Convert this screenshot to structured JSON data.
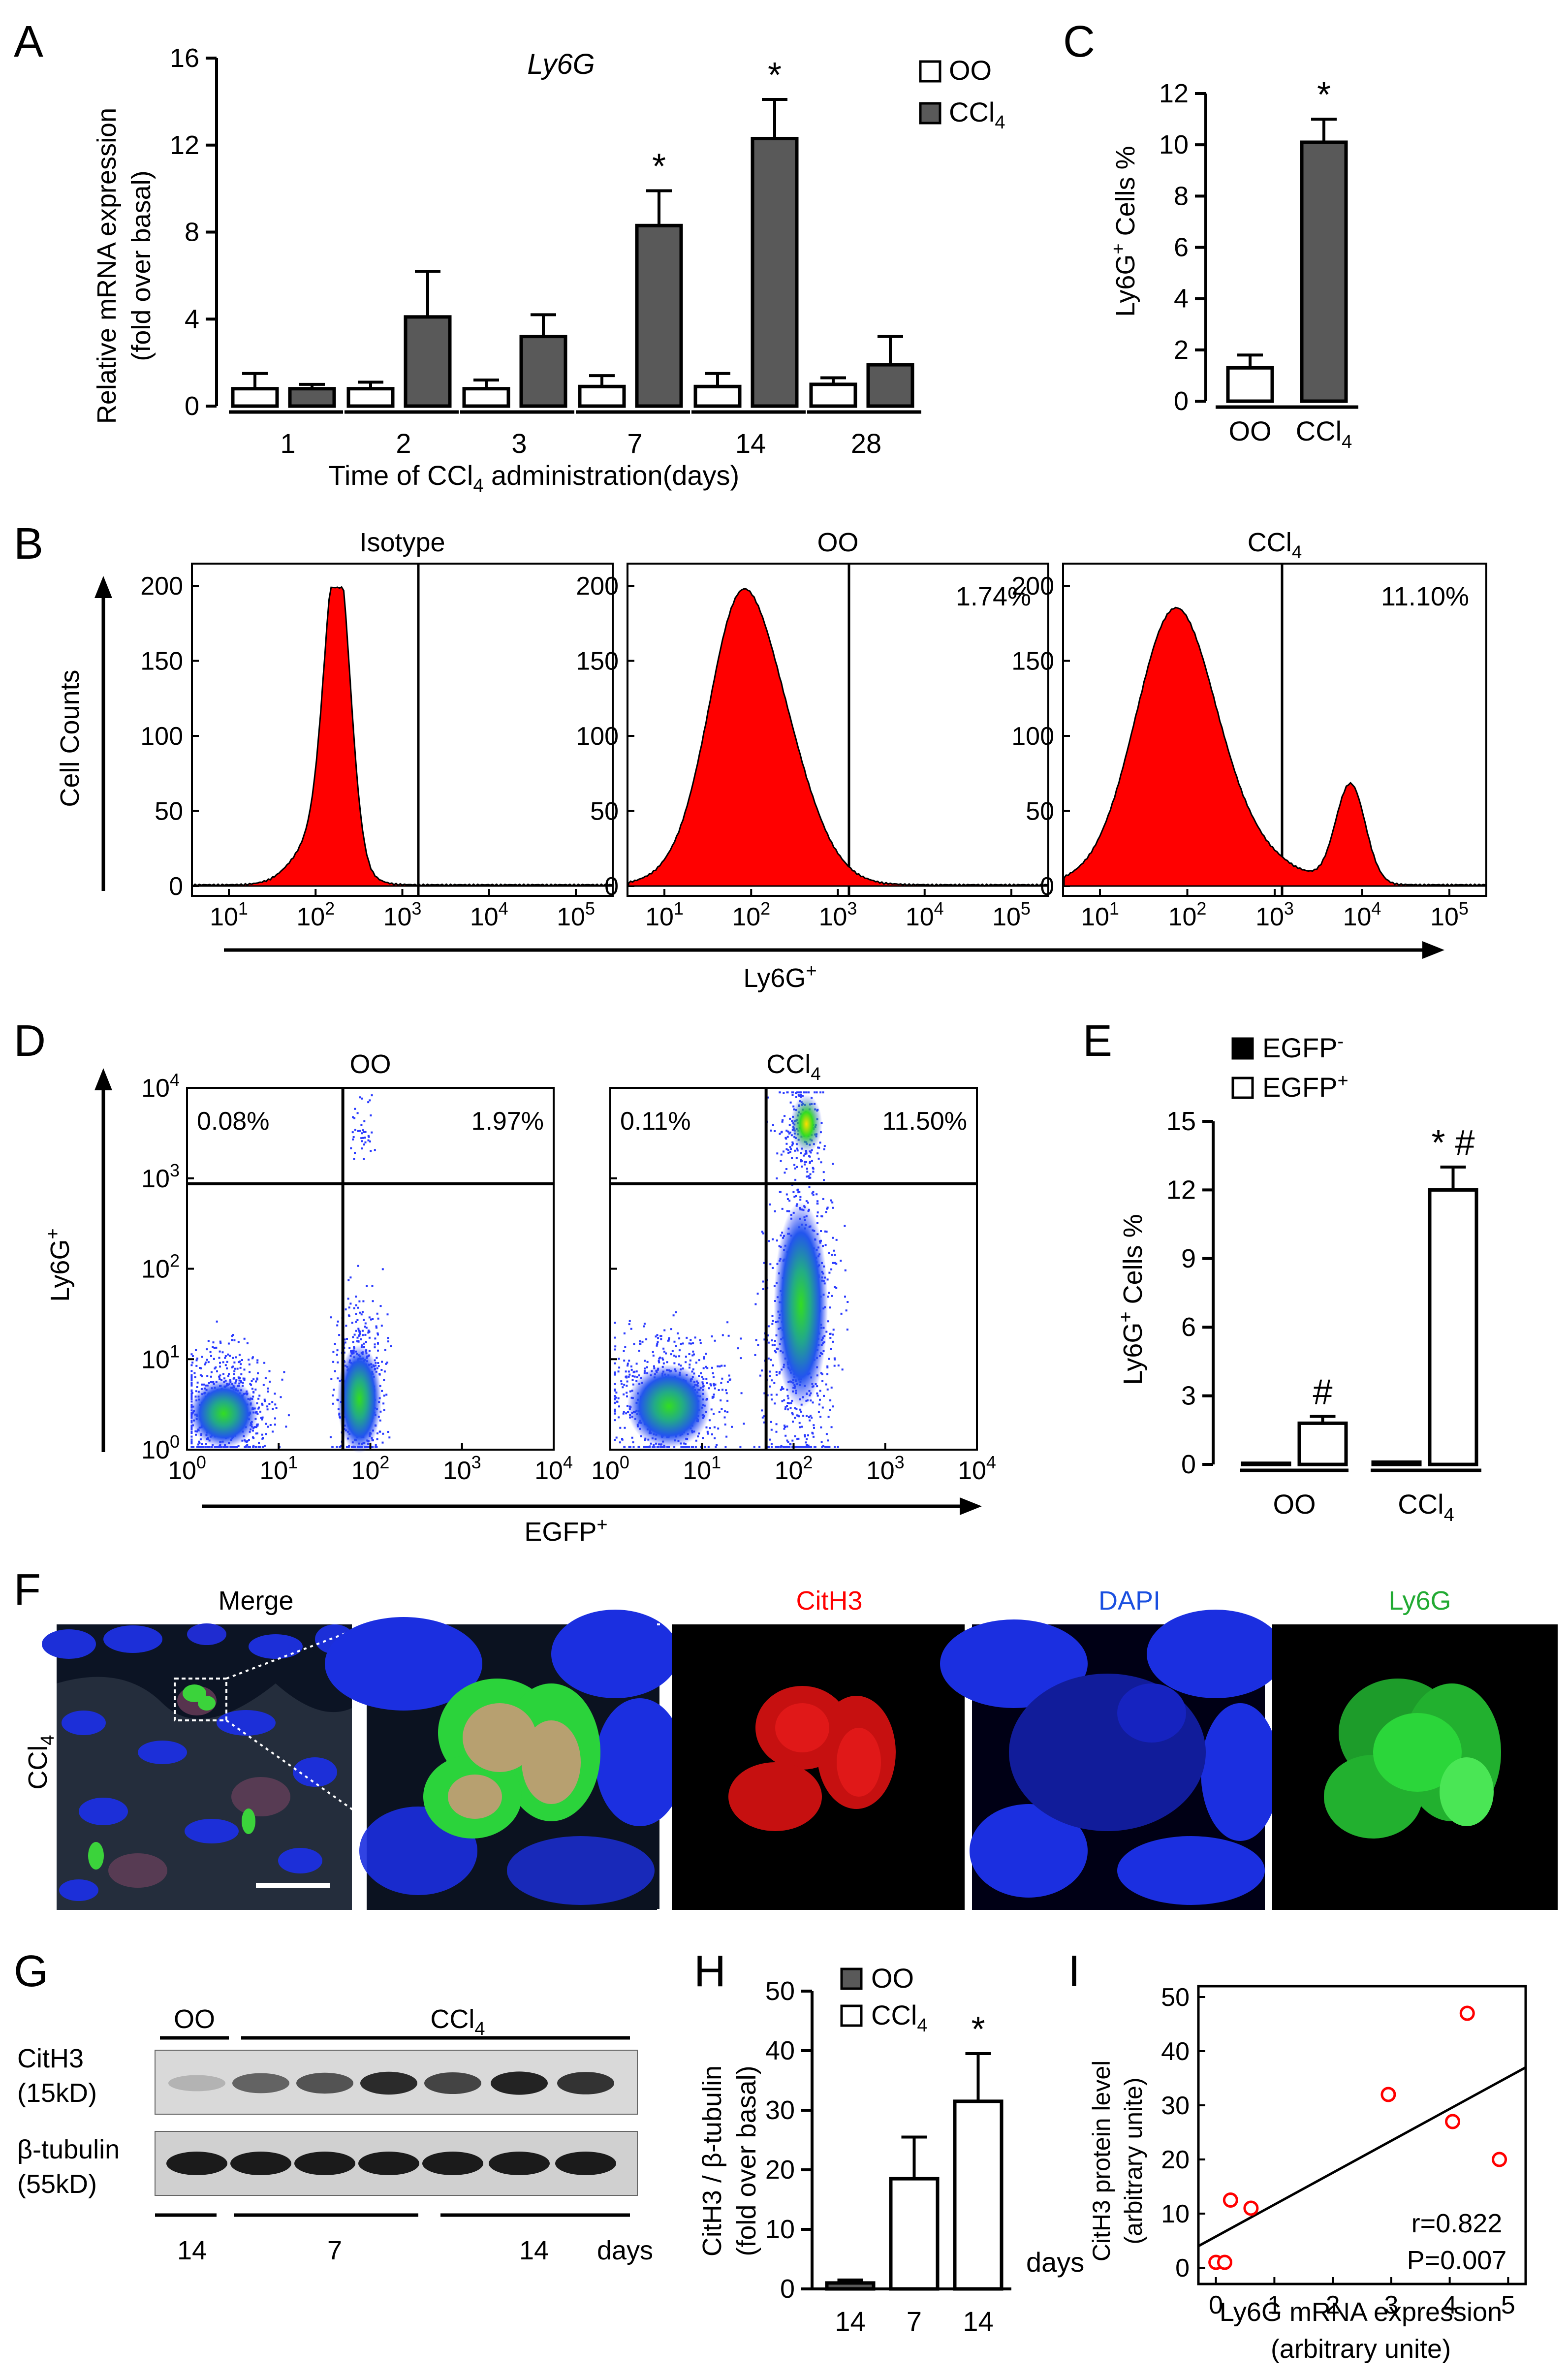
{
  "colors": {
    "dark_bar": "#595959",
    "red": "#ff0000",
    "blue": "#1533ff",
    "green": "#22bb33",
    "black": "#000000",
    "white": "#ffffff"
  },
  "panels": [
    "A",
    "B",
    "C",
    "D",
    "E",
    "F",
    "G",
    "H",
    "I"
  ],
  "chart_data": [
    {
      "panel": "A",
      "type": "bar",
      "title": "Ly6G",
      "ylabel": "Relative mRNA expression",
      "ylabel2": "(fold over basal)",
      "xlabel": "Time of CCl",
      "xlabel_sub": "4",
      "xlabel_tail": " administration(days)",
      "ylim": [
        0,
        16
      ],
      "yticks": [
        "0",
        "4",
        "8",
        "12",
        "16"
      ],
      "categories": [
        "1",
        "2",
        "3",
        "7",
        "14",
        "28"
      ],
      "legend": [
        {
          "name": "OO",
          "sub": ""
        },
        {
          "name": "CCl",
          "sub": "4"
        }
      ],
      "series": [
        {
          "name": "OO",
          "values": [
            0.8,
            0.8,
            0.8,
            0.9,
            0.9,
            1.0
          ],
          "errors": [
            0.7,
            0.3,
            0.4,
            0.5,
            0.6,
            0.3
          ]
        },
        {
          "name": "CCl4",
          "values": [
            0.8,
            4.1,
            3.2,
            8.3,
            12.3,
            1.9
          ],
          "errors": [
            0.2,
            2.1,
            1.0,
            1.6,
            1.8,
            1.3
          ]
        }
      ],
      "significance": [
        "",
        "",
        "",
        "*",
        "*",
        ""
      ]
    },
    {
      "panel": "C",
      "type": "bar",
      "ylabel": "Ly6G",
      "ylabel_sup": "+",
      "ylabel_tail": " Cells %",
      "ylim": [
        0,
        12
      ],
      "yticks": [
        "0",
        "2",
        "4",
        "6",
        "8",
        "10",
        "12"
      ],
      "categories": [
        {
          "name": "OO",
          "sub": ""
        },
        {
          "name": "CCl",
          "sub": "4"
        }
      ],
      "values": [
        1.3,
        10.1
      ],
      "errors": [
        0.5,
        0.9
      ],
      "significance": [
        "",
        "*"
      ]
    },
    {
      "panel": "B",
      "type": "histogram",
      "ylabel": "Cell Counts",
      "xlabel": "Ly6G",
      "xlabel_sup": "+",
      "yticks": [
        "0",
        "50",
        "100",
        "150",
        "200"
      ],
      "xticks": [
        "1",
        "2",
        "3",
        "4",
        "5"
      ],
      "subplots": [
        {
          "title": "Isotype",
          "title_sub": "",
          "percent": ""
        },
        {
          "title": "OO",
          "title_sub": "",
          "percent": "1.74%"
        },
        {
          "title": "CCl",
          "title_sub": "4",
          "percent": "11.10%"
        }
      ]
    },
    {
      "panel": "D",
      "type": "scatter",
      "ylabel": "Ly6G",
      "ylabel_sup": "+",
      "xlabel": "EGFP",
      "xlabel_sup": "+",
      "ticks": [
        "0",
        "1",
        "2",
        "3",
        "4"
      ],
      "subplots": [
        {
          "title": "OO",
          "title_sub": "",
          "ul": "0.08%",
          "ur": "1.97%"
        },
        {
          "title": "CCl",
          "title_sub": "4",
          "ul": "0.11%",
          "ur": "11.50%"
        }
      ]
    },
    {
      "panel": "E",
      "type": "bar",
      "ylabel": "Ly6G",
      "ylabel_sup": "+",
      "ylabel_tail": " Cells %",
      "ylim": [
        0,
        15
      ],
      "yticks": [
        "0",
        "3",
        "6",
        "9",
        "12",
        "15"
      ],
      "legend": [
        {
          "name": "EGFP",
          "sup": "-"
        },
        {
          "name": "EGFP",
          "sup": "+"
        }
      ],
      "groups": [
        {
          "name": "OO",
          "sub": ""
        },
        {
          "name": "CCl",
          "sub": "4"
        }
      ],
      "series": [
        {
          "name": "EGFP-",
          "values": [
            0.05,
            0.1
          ],
          "errors": [
            0.05,
            0.05
          ]
        },
        {
          "name": "EGFP+",
          "values": [
            1.8,
            12.0
          ],
          "errors": [
            0.3,
            1.0
          ]
        }
      ],
      "significance": [
        [
          "",
          "#"
        ],
        [
          "",
          "* #"
        ]
      ]
    },
    {
      "panel": "H",
      "type": "bar",
      "ylabel": "CitH3 / β-tubulin",
      "ylabel2": "(fold over basal)",
      "ylim": [
        0,
        50
      ],
      "yticks": [
        "0",
        "10",
        "20",
        "30",
        "40",
        "50"
      ],
      "legend": [
        {
          "name": "OO",
          "sub": ""
        },
        {
          "name": "CCl",
          "sub": "4"
        }
      ],
      "categories": [
        "14",
        "7",
        "14"
      ],
      "days_label": "days",
      "values": [
        1,
        18.5,
        31.5
      ],
      "errors": [
        0.5,
        7,
        8
      ],
      "series_of_bar": [
        "OO",
        "CCl4",
        "CCl4"
      ],
      "significance": [
        "",
        "",
        "*"
      ]
    },
    {
      "panel": "I",
      "type": "scatter",
      "ylabel": "CitH3 protein level",
      "ylabel2": "(arbitrary unite)",
      "xlabel": "Ly6G mRNA expression",
      "xlabel2": "(arbitrary unite)",
      "xlim": [
        -0.3,
        5.3
      ],
      "ylim": [
        -3,
        52
      ],
      "xticks": [
        "0",
        "1",
        "2",
        "3",
        "4",
        "5"
      ],
      "yticks": [
        "0",
        "10",
        "20",
        "30",
        "40",
        "50"
      ],
      "points": [
        [
          0,
          1
        ],
        [
          0.15,
          1
        ],
        [
          0.25,
          12.5
        ],
        [
          0.6,
          11
        ],
        [
          2.95,
          32
        ],
        [
          4.05,
          27
        ],
        [
          4.3,
          47
        ],
        [
          4.85,
          20
        ]
      ],
      "fit": [
        [
          -0.3,
          4
        ],
        [
          5.3,
          37
        ]
      ],
      "stats": [
        "r=0.822",
        "P=0.007"
      ]
    }
  ],
  "panel_F": {
    "row_label": "CCl",
    "row_label_sub": "4",
    "titles": [
      "Merge",
      "",
      "CitH3",
      "DAPI",
      "Ly6G"
    ]
  },
  "panel_G": {
    "oo_label": "OO",
    "ccl_label": "CCl",
    "ccl_sub": "4",
    "rows": [
      {
        "name": "CitH3",
        "size": "(15kD)"
      },
      {
        "name": "β-tubulin",
        "size": "(55kD)"
      }
    ],
    "bottom": [
      "14",
      "7",
      "14",
      "days"
    ],
    "cith3_intensity": [
      0.05,
      0.55,
      0.65,
      0.9,
      0.75,
      0.95,
      0.85
    ],
    "tubulin_intensity": [
      0.95,
      0.95,
      0.95,
      0.95,
      0.95,
      0.95,
      0.95
    ]
  }
}
